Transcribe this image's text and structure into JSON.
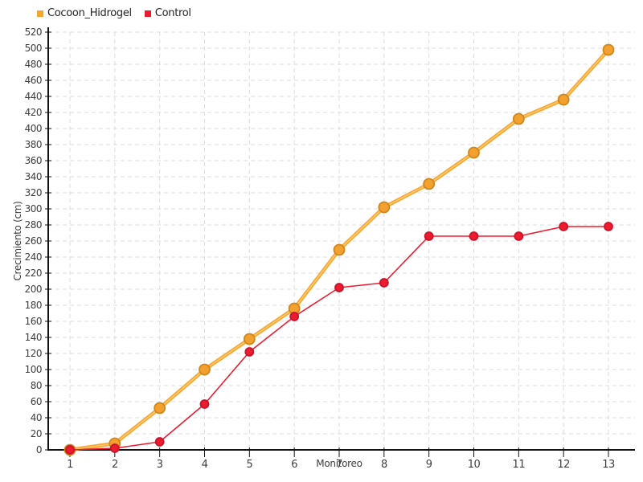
{
  "legend": {
    "items": [
      {
        "label": "Cocoon_Hidrogel",
        "color": "#F7A52F"
      },
      {
        "label": "Control",
        "color": "#ED1B2F"
      }
    ]
  },
  "chart_data": {
    "type": "line",
    "title": "",
    "xlabel": "Monitoreo",
    "ylabel": "Crecimiento (cm)",
    "x": [
      1,
      2,
      3,
      4,
      5,
      6,
      7,
      8,
      9,
      10,
      11,
      12,
      13
    ],
    "series": [
      {
        "name": "Cocoon_Hidrogel",
        "color": "#F7A52F",
        "highlight": "#FFC869",
        "marker_fill": "#F2A12E",
        "marker_stroke": "#CE861D",
        "line_width": 4.6,
        "marker_radius": 6.5,
        "values": [
          0,
          8,
          52,
          100,
          138,
          176,
          249,
          302,
          331,
          370,
          412,
          436,
          498
        ]
      },
      {
        "name": "Control",
        "color": "#ED1B2F",
        "highlight": "",
        "marker_fill": "#ED1B2F",
        "marker_stroke": "#C8132B",
        "line_width": 1.6,
        "marker_radius": 5,
        "values": [
          0,
          2,
          10,
          57,
          122,
          166,
          202,
          208,
          266,
          266,
          266,
          278,
          278
        ]
      }
    ],
    "ylim": [
      0,
      520
    ],
    "ytick_step": 20,
    "xlim": [
      1,
      13
    ],
    "grid": true,
    "legend_position": "top-left"
  }
}
